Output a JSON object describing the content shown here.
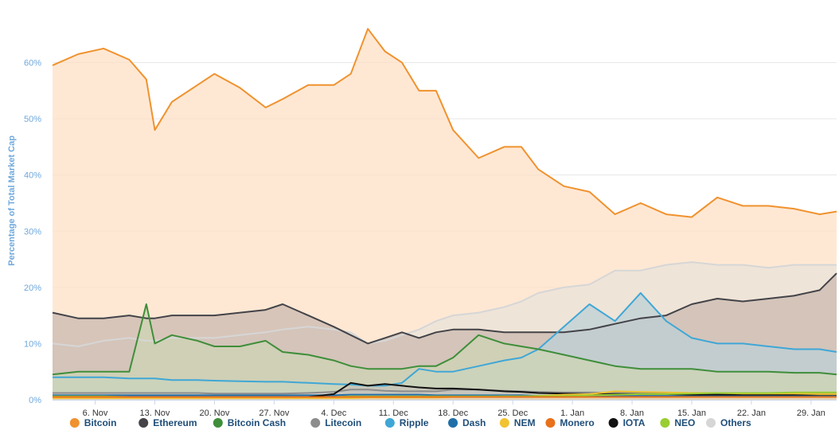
{
  "chart_data": {
    "type": "area",
    "ylabel": "Percentage of Total Market Cap",
    "ylim": [
      0,
      70
    ],
    "y_ticks": [
      0,
      10,
      20,
      30,
      40,
      50,
      60
    ],
    "y_tick_labels": [
      "0%",
      "10%",
      "20%",
      "30%",
      "40%",
      "50%",
      "60%"
    ],
    "x": [
      "2017-11-01",
      "2017-11-04",
      "2017-11-07",
      "2017-11-10",
      "2017-11-12",
      "2017-11-13",
      "2017-11-15",
      "2017-11-18",
      "2017-11-20",
      "2017-11-23",
      "2017-11-26",
      "2017-11-28",
      "2017-12-01",
      "2017-12-04",
      "2017-12-06",
      "2017-12-08",
      "2017-12-10",
      "2017-12-12",
      "2017-12-14",
      "2017-12-16",
      "2017-12-18",
      "2017-12-21",
      "2017-12-24",
      "2017-12-26",
      "2017-12-28",
      "2017-12-31",
      "2018-01-03",
      "2018-01-06",
      "2018-01-09",
      "2018-01-12",
      "2018-01-15",
      "2018-01-18",
      "2018-01-21",
      "2018-01-24",
      "2018-01-27",
      "2018-01-30",
      "2018-02-01"
    ],
    "x_ticks": [
      "2017-11-06",
      "2017-11-13",
      "2017-11-20",
      "2017-11-27",
      "2017-12-04",
      "2017-12-11",
      "2017-12-18",
      "2017-12-25",
      "2018-01-01",
      "2018-01-08",
      "2018-01-15",
      "2018-01-22",
      "2018-01-29"
    ],
    "x_tick_labels": [
      "6. Nov",
      "13. Nov",
      "20. Nov",
      "27. Nov",
      "4. Dec",
      "11. Dec",
      "18. Dec",
      "25. Dec",
      "1. Jan",
      "8. Jan",
      "15. Jan",
      "22. Jan",
      "29. Jan"
    ],
    "series": [
      {
        "name": "Bitcoin",
        "color": "#f0922e",
        "fill": "#fde0c5",
        "values": [
          59.5,
          61.5,
          62.5,
          60.5,
          57,
          48,
          53,
          56,
          58,
          55.5,
          52,
          53.5,
          56,
          56,
          58,
          66,
          62,
          60,
          55,
          55,
          48,
          43,
          45,
          45,
          41,
          38,
          37,
          33,
          35,
          33,
          32.5,
          36,
          34.5,
          34.5,
          34,
          33,
          33.5
        ]
      },
      {
        "name": "Others",
        "color": "#d6d6d6",
        "fill": "#e9e3da",
        "values": [
          10,
          9.5,
          10.5,
          11,
          10.5,
          10.5,
          11,
          11,
          11,
          11.5,
          12,
          12.5,
          13,
          12.5,
          12,
          10,
          10.5,
          11.5,
          12.5,
          14,
          15,
          15.5,
          16.5,
          17.5,
          19,
          20,
          20.5,
          23,
          23,
          24,
          24.5,
          24,
          24,
          23.5,
          24,
          24,
          24
        ]
      },
      {
        "name": "Ethereum",
        "color": "#434348",
        "fill": "#cbbab0",
        "values": [
          15.5,
          14.5,
          14.5,
          15,
          14.5,
          14.5,
          15,
          15,
          15,
          15.5,
          16,
          17,
          15,
          13,
          11.5,
          10,
          11,
          12,
          11,
          12,
          12.5,
          12.5,
          12,
          12,
          12,
          12,
          12.5,
          13.5,
          14.5,
          15,
          17,
          18,
          17.5,
          18,
          18.5,
          19.5,
          22.5
        ]
      },
      {
        "name": "Ripple",
        "color": "#3fa7d6",
        "fill": "#bed0d6",
        "values": [
          4,
          4,
          4,
          3.8,
          3.8,
          3.8,
          3.5,
          3.5,
          3.4,
          3.3,
          3.2,
          3.2,
          3,
          2.8,
          2.7,
          2.5,
          2.5,
          3,
          5.5,
          5,
          5,
          6,
          7,
          7.5,
          9,
          13,
          17,
          14,
          19,
          14,
          11,
          10,
          10,
          9.5,
          9,
          9,
          8.5
        ]
      },
      {
        "name": "Bitcoin Cash",
        "color": "#3f8e3a",
        "fill": "#cdd4b4",
        "values": [
          4.5,
          5,
          5,
          5,
          17,
          10,
          11.5,
          10.5,
          9.5,
          9.5,
          10.5,
          8.5,
          8,
          7,
          6,
          5.5,
          5.5,
          5.5,
          6,
          6,
          7.5,
          11.5,
          10,
          9.5,
          9,
          8,
          7,
          6,
          5.5,
          5.5,
          5.5,
          5,
          5,
          5,
          4.8,
          4.8,
          4.5
        ]
      },
      {
        "name": "Litecoin",
        "color": "#8c8c8c",
        "fill": "#d0d0d0",
        "values": [
          1.2,
          1.2,
          1.2,
          1.2,
          1.2,
          1.2,
          1.2,
          1.2,
          1.1,
          1.1,
          1.1,
          1.1,
          1.2,
          1.4,
          1.8,
          1.8,
          1.6,
          1.5,
          1.5,
          1.5,
          1.8,
          1.8,
          1.6,
          1.5,
          1.4,
          1.3,
          1.3,
          1.2,
          1.2,
          1.2,
          1.2,
          1.2,
          1.1,
          1.1,
          1.1,
          1.1,
          1.1
        ]
      },
      {
        "name": "Dash",
        "color": "#1f6ea8",
        "fill": "#c2cdd5",
        "values": [
          0.8,
          0.8,
          0.8,
          0.8,
          0.8,
          0.8,
          0.8,
          0.8,
          0.8,
          0.8,
          0.8,
          0.8,
          0.8,
          0.8,
          0.9,
          0.9,
          0.9,
          0.9,
          0.9,
          0.8,
          0.8,
          0.8,
          0.8,
          0.8,
          0.7,
          0.7,
          0.7,
          0.7,
          0.7,
          0.7,
          0.7,
          0.7,
          0.7,
          0.7,
          0.7,
          0.6,
          0.6
        ]
      },
      {
        "name": "IOTA",
        "color": "#111111",
        "fill": "#c6c2b8",
        "values": [
          0.4,
          0.4,
          0.4,
          0.4,
          0.4,
          0.4,
          0.4,
          0.4,
          0.4,
          0.4,
          0.4,
          0.4,
          0.5,
          1,
          3,
          2.5,
          2.8,
          2.5,
          2.2,
          2,
          2,
          1.8,
          1.5,
          1.4,
          1.2,
          1.1,
          1,
          1,
          1,
          1,
          0.9,
          0.9,
          0.9,
          0.9,
          0.9,
          0.9,
          0.9
        ]
      },
      {
        "name": "NEM",
        "color": "#f1c232",
        "fill": "#e8dcb0",
        "values": [
          0.3,
          0.3,
          0.3,
          0.3,
          0.3,
          0.3,
          0.3,
          0.3,
          0.3,
          0.3,
          0.3,
          0.3,
          0.3,
          0.3,
          0.3,
          0.4,
          0.4,
          0.4,
          0.4,
          0.4,
          0.5,
          0.5,
          0.6,
          0.6,
          0.7,
          0.9,
          1,
          1.5,
          1.4,
          1.3,
          1.2,
          1.2,
          1.1,
          1.1,
          1.1,
          1,
          1
        ]
      },
      {
        "name": "NEO",
        "color": "#9acd32",
        "fill": "#dbe5b8",
        "values": [
          0.6,
          0.6,
          0.6,
          0.5,
          0.5,
          0.5,
          0.5,
          0.5,
          0.5,
          0.5,
          0.5,
          0.5,
          0.5,
          0.5,
          0.6,
          0.6,
          0.6,
          0.6,
          0.6,
          0.6,
          0.6,
          0.6,
          0.6,
          0.6,
          0.7,
          0.7,
          0.8,
          0.9,
          1,
          1,
          1.1,
          1.2,
          1.2,
          1.2,
          1.3,
          1.3,
          1.3
        ]
      },
      {
        "name": "Monero",
        "color": "#e8711a",
        "fill": "#e9cfb6",
        "values": [
          0.5,
          0.5,
          0.5,
          0.5,
          0.5,
          0.5,
          0.5,
          0.5,
          0.5,
          0.5,
          0.5,
          0.5,
          0.5,
          0.5,
          0.5,
          0.5,
          0.5,
          0.5,
          0.5,
          0.5,
          0.5,
          0.5,
          0.5,
          0.5,
          0.5,
          0.5,
          0.5,
          0.5,
          0.5,
          0.5,
          0.5,
          0.5,
          0.5,
          0.5,
          0.5,
          0.5,
          0.5
        ]
      }
    ],
    "legend": {
      "placement": "bottom",
      "items": [
        {
          "name": "Bitcoin",
          "color": "#f0922e"
        },
        {
          "name": "Ethereum",
          "color": "#434348"
        },
        {
          "name": "Bitcoin Cash",
          "color": "#3f8e3a"
        },
        {
          "name": "Litecoin",
          "color": "#8c8c8c"
        },
        {
          "name": "Ripple",
          "color": "#3fa7d6"
        },
        {
          "name": "Dash",
          "color": "#1f6ea8"
        },
        {
          "name": "NEM",
          "color": "#f1c232"
        },
        {
          "name": "Monero",
          "color": "#e8711a"
        },
        {
          "name": "IOTA",
          "color": "#111111"
        },
        {
          "name": "NEO",
          "color": "#9acd32"
        },
        {
          "name": "Others",
          "color": "#d6d6d6"
        }
      ]
    },
    "grid": true
  }
}
